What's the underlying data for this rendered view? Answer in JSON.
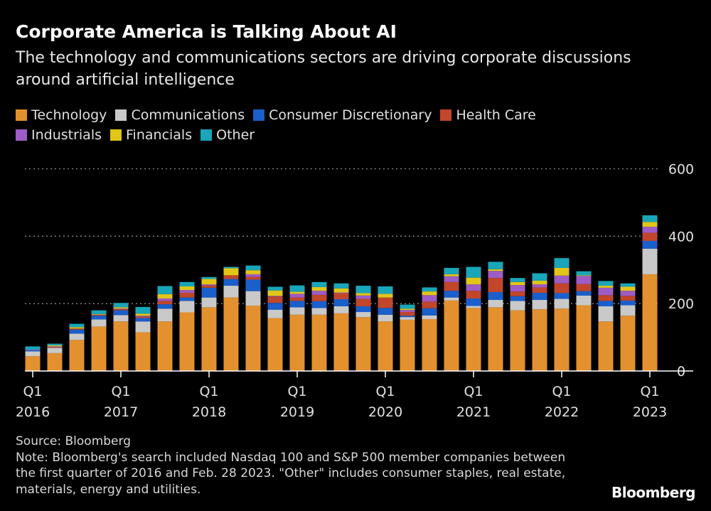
{
  "title": "Corporate America is Talking About AI",
  "subtitle": "The technology and communications sectors are driving corporate discussions around artificial intelligence",
  "footer": {
    "source": "Source: Bloomberg",
    "note": "Note: Bloomberg's search included Nasdaq 100 and S&P 500 member companies between the first quarter of 2016 and Feb. 28 2023. \"Other\" includes consumer staples, real estate, materials, energy and utilities."
  },
  "logo": "Bloomberg",
  "chart_data": {
    "type": "bar",
    "stacked": true,
    "title": "Corporate America is Talking About AI",
    "xlabel": "",
    "ylabel": "",
    "ylim": [
      0,
      600
    ],
    "yticks": [
      0,
      200,
      400,
      600
    ],
    "grid": true,
    "legend_placement": "top",
    "axis_side_y": "right",
    "xtick_labels": [
      {
        "index": 0,
        "q": "Q1",
        "year": "2016"
      },
      {
        "index": 4,
        "q": "Q1",
        "year": "2017"
      },
      {
        "index": 8,
        "q": "Q1",
        "year": "2018"
      },
      {
        "index": 12,
        "q": "Q1",
        "year": "2019"
      },
      {
        "index": 16,
        "q": "Q1",
        "year": "2020"
      },
      {
        "index": 20,
        "q": "Q1",
        "year": "2021"
      },
      {
        "index": 24,
        "q": "Q1",
        "year": "2022"
      },
      {
        "index": 28,
        "q": "Q1",
        "year": "2023"
      }
    ],
    "categories": [
      "Q1 2016",
      "Q2 2016",
      "Q3 2016",
      "Q4 2016",
      "Q1 2017",
      "Q2 2017",
      "Q3 2017",
      "Q4 2017",
      "Q1 2018",
      "Q2 2018",
      "Q3 2018",
      "Q4 2018",
      "Q1 2019",
      "Q2 2019",
      "Q3 2019",
      "Q4 2019",
      "Q1 2020",
      "Q2 2020",
      "Q3 2020",
      "Q4 2020",
      "Q1 2021",
      "Q2 2021",
      "Q3 2021",
      "Q4 2021",
      "Q1 2022",
      "Q2 2022",
      "Q3 2022",
      "Q4 2022",
      "Q1 2023"
    ],
    "series": [
      {
        "name": "Technology",
        "color": "#e3902f",
        "values": [
          44,
          53,
          92,
          132,
          147,
          115,
          147,
          174,
          189,
          218,
          194,
          157,
          167,
          167,
          171,
          160,
          147,
          152,
          154,
          209,
          187,
          189,
          180,
          183,
          185,
          195,
          147,
          164,
          287
        ]
      },
      {
        "name": "Communications",
        "color": "#c9c9c9",
        "values": [
          14,
          16,
          19,
          21,
          19,
          32,
          38,
          34,
          29,
          35,
          43,
          25,
          22,
          20,
          21,
          15,
          20,
          8,
          11,
          9,
          6,
          22,
          28,
          28,
          29,
          29,
          45,
          31,
          76
        ]
      },
      {
        "name": "Consumer Discretionary",
        "color": "#1a5fcc",
        "values": [
          3,
          0,
          12,
          11,
          14,
          10,
          13,
          10,
          29,
          20,
          34,
          20,
          19,
          20,
          21,
          17,
          20,
          4,
          21,
          20,
          22,
          23,
          14,
          21,
          17,
          13,
          16,
          14,
          23
        ]
      },
      {
        "name": "Health Care",
        "color": "#c1462b",
        "values": [
          0,
          2,
          3,
          2,
          3,
          4,
          10,
          14,
          7,
          11,
          8,
          19,
          10,
          19,
          18,
          22,
          31,
          11,
          20,
          26,
          23,
          42,
          14,
          16,
          29,
          21,
          17,
          14,
          24
        ]
      },
      {
        "name": "Industrials",
        "color": "#9e5cc6",
        "values": [
          2,
          2,
          0,
          1,
          2,
          3,
          7,
          8,
          3,
          0,
          8,
          2,
          11,
          12,
          2,
          10,
          0,
          6,
          19,
          17,
          19,
          21,
          19,
          9,
          23,
          24,
          22,
          15,
          18
        ]
      },
      {
        "name": "Financials",
        "color": "#e2c517",
        "values": [
          0,
          3,
          4,
          2,
          4,
          6,
          13,
          11,
          16,
          21,
          12,
          16,
          6,
          11,
          12,
          7,
          11,
          4,
          11,
          6,
          20,
          5,
          9,
          11,
          23,
          2,
          6,
          12,
          14
        ]
      },
      {
        "name": "Other",
        "color": "#19a6b9",
        "values": [
          10,
          5,
          10,
          11,
          13,
          20,
          24,
          13,
          6,
          4,
          14,
          11,
          19,
          15,
          15,
          22,
          22,
          12,
          12,
          19,
          32,
          22,
          12,
          22,
          29,
          12,
          14,
          10,
          20
        ]
      }
    ]
  },
  "colors": {
    "background": "#000000",
    "grid": "#888888",
    "text": "#ffffff"
  }
}
